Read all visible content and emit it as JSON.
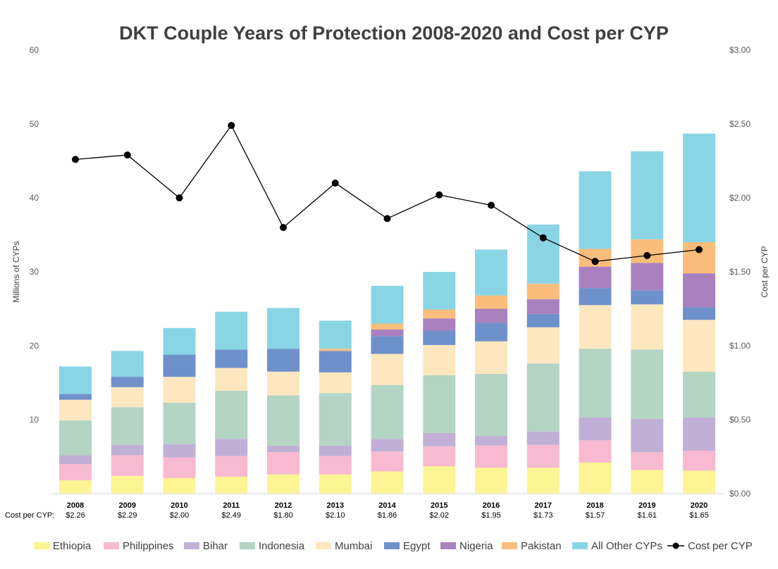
{
  "chart_data": {
    "type": "bar",
    "stacked": true,
    "title": "DKT Couple Years of Protection 2008-2020 and Cost per CYP",
    "ylabel": "Millions of CYPs",
    "y2label": "Cost per CYP",
    "ylim": [
      0,
      60
    ],
    "y2lim": [
      0,
      3
    ],
    "yticks": [
      "60",
      "50",
      "40",
      "30",
      "20",
      "10"
    ],
    "y2ticks": [
      "$3.00",
      "$2.50",
      "$2.00",
      "$1.50",
      "$1.00",
      "$0.50",
      "$0.00"
    ],
    "grid": false,
    "legend_position": "bottom",
    "categories": [
      "2008",
      "2009",
      "2010",
      "2011",
      "2012",
      "2013",
      "2014",
      "2015",
      "2016",
      "2017",
      "2018",
      "2019",
      "2020"
    ],
    "cost_row_label": "Cost per CYP:",
    "cost_labels": [
      "$2.26",
      "$2.29",
      "$2.00",
      "$2.49",
      "$1.80",
      "$2.10",
      "$1.86",
      "$2.02",
      "$1.95",
      "$1.73",
      "$1.57",
      "$1.61",
      "$1.65"
    ],
    "series": [
      {
        "name": "Ethiopia",
        "color": "#fdf593",
        "values": [
          1.8,
          2.4,
          2.1,
          2.3,
          2.6,
          2.6,
          3.0,
          3.7,
          3.5,
          3.5,
          4.2,
          3.2,
          3.1
        ]
      },
      {
        "name": "Philippines",
        "color": "#f8bad0",
        "values": [
          2.2,
          2.8,
          2.8,
          2.8,
          3.0,
          2.5,
          2.7,
          2.7,
          3.0,
          3.1,
          3.0,
          2.4,
          2.7
        ]
      },
      {
        "name": "Bihar",
        "color": "#c1b0d5",
        "values": [
          1.2,
          1.4,
          1.8,
          2.3,
          0.9,
          1.4,
          1.7,
          1.8,
          1.3,
          1.8,
          3.1,
          4.5,
          4.5
        ]
      },
      {
        "name": "Indonesia",
        "color": "#b4d4c4",
        "values": [
          4.7,
          5.1,
          5.6,
          6.5,
          6.8,
          7.1,
          7.3,
          7.8,
          8.4,
          9.2,
          9.3,
          9.4,
          6.2
        ]
      },
      {
        "name": "Mumbai",
        "color": "#fde7bf",
        "values": [
          2.8,
          2.7,
          3.5,
          3.1,
          3.2,
          2.8,
          4.2,
          4.1,
          4.4,
          4.9,
          5.9,
          6.1,
          7.0
        ]
      },
      {
        "name": "Egypt",
        "color": "#6f91cb",
        "values": [
          0.8,
          1.4,
          3.0,
          2.5,
          3.1,
          2.9,
          2.4,
          1.9,
          2.5,
          1.8,
          2.3,
          1.9,
          1.7
        ]
      },
      {
        "name": "Nigeria",
        "color": "#a981bf",
        "values": [
          0,
          0,
          0,
          0,
          0,
          0,
          0.9,
          1.7,
          1.9,
          2.0,
          2.9,
          3.7,
          4.6
        ]
      },
      {
        "name": "Pakistan",
        "color": "#fbbd7b",
        "values": [
          0,
          0,
          0,
          0,
          0,
          0.3,
          0.8,
          1.2,
          1.8,
          2.1,
          2.4,
          3.2,
          4.2
        ]
      },
      {
        "name": "All Other CYPs",
        "color": "#8ad5e5",
        "values": [
          3.7,
          3.5,
          3.6,
          5.1,
          5.5,
          3.8,
          5.1,
          5.1,
          6.2,
          8.0,
          10.5,
          11.9,
          14.7
        ]
      }
    ],
    "line_series": {
      "name": "Cost per CYP",
      "color": "#000000",
      "axis": "right",
      "values": [
        2.26,
        2.29,
        2.0,
        2.49,
        1.8,
        2.1,
        1.86,
        2.02,
        1.95,
        1.73,
        1.57,
        1.61,
        1.65
      ]
    }
  }
}
